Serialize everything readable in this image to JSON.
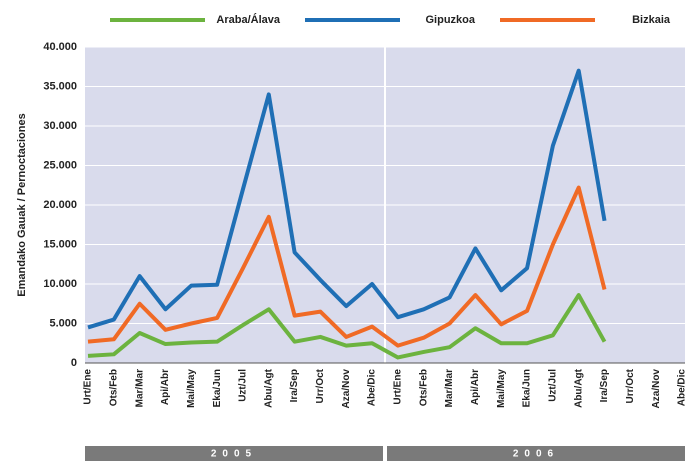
{
  "chart_data": {
    "type": "line",
    "y_label": "Emandako Gauak / Pernoctaciones",
    "categories": [
      "Urt/Ene",
      "Ots/Feb",
      "Mar/Mar",
      "Api/Abr",
      "Mai/May",
      "Eka/Jun",
      "Uzt/Jul",
      "Abu/Agt",
      "Ira/Sep",
      "Urr/Oct",
      "Aza/Nov",
      "Abe/Dic",
      "Urt/Ene",
      "Ots/Feb",
      "Mar/Mar",
      "Api/Abr",
      "Mai/May",
      "Eka/Jun",
      "Uzt/Jul",
      "Abu/Agt",
      "Ira/Sep",
      "Urr/Oct",
      "Aza/Nov",
      "Abe/Dic"
    ],
    "groups": [
      "2005",
      "2006"
    ],
    "series": [
      {
        "name": "Araba/Álava",
        "color": "#6cb33f",
        "values": [
          900,
          1100,
          3800,
          2400,
          2600,
          2700,
          4800,
          6800,
          2700,
          3300,
          2200,
          2500,
          700,
          1400,
          2000,
          4400,
          2500,
          2500,
          3500,
          8600,
          2700,
          null,
          null,
          null
        ]
      },
      {
        "name": "Gipuzkoa",
        "color": "#1f6fb5",
        "values": [
          4500,
          5500,
          11000,
          6800,
          9800,
          9900,
          22000,
          34000,
          14000,
          10500,
          7200,
          10000,
          5800,
          6800,
          8300,
          14500,
          9200,
          12000,
          27500,
          37000,
          18000,
          null,
          null,
          null
        ]
      },
      {
        "name": "Bizkaia",
        "color": "#f06a25",
        "values": [
          2700,
          3000,
          7500,
          4200,
          5000,
          5700,
          12000,
          18500,
          6000,
          6500,
          3300,
          4600,
          2200,
          3200,
          5000,
          8600,
          4900,
          6600,
          15000,
          22200,
          9300,
          null,
          null,
          null
        ]
      }
    ],
    "ylim": [
      0,
      40000
    ],
    "yticks": [
      0,
      {
        "value": 5000,
        "label": "5.000"
      },
      {
        "value": 10000,
        "label": "10.000"
      },
      {
        "value": 15000,
        "label": "15.000"
      },
      {
        "value": 20000,
        "label": "20.000"
      },
      {
        "value": 25000,
        "label": "25.000"
      },
      {
        "value": 30000,
        "label": "30.000"
      },
      {
        "value": 35000,
        "label": "35.000"
      },
      {
        "value": 40000,
        "label": "40.000"
      }
    ],
    "grid": true,
    "legend": "top"
  }
}
